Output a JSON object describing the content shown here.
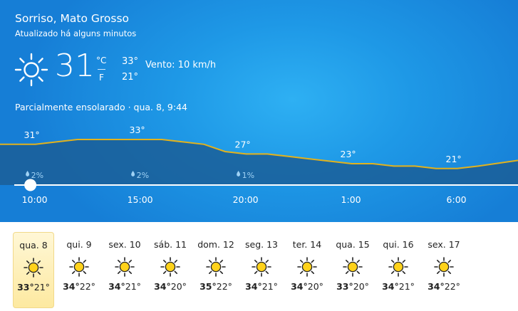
{
  "location": "Sorriso, Mato Grosso",
  "updated": "Atualizado há alguns minutos",
  "current": {
    "icon": "sun-icon",
    "temperature": "31",
    "unit_c": "°C",
    "unit_f": "F",
    "high": "33°",
    "low": "21°",
    "wind": "Vento: 10 km/h",
    "condition": "Parcialmente ensolarado  ·  qua. 8, 9:44"
  },
  "colors": {
    "card_gradient_center": "#2eb0f3",
    "card_gradient_edge": "#167ed6",
    "chart_fill": "#1b5d95",
    "chart_line": "#e2b21d",
    "selected_day": "#fde9a0"
  },
  "chart_data": {
    "type": "area",
    "x": [
      "9:00",
      "10:00",
      "11:00",
      "12:00",
      "13:00",
      "14:00",
      "15:00",
      "16:00",
      "17:00",
      "18:00",
      "19:00",
      "20:00",
      "21:00",
      "22:00",
      "23:00",
      "0:00",
      "1:00",
      "2:00",
      "3:00",
      "4:00",
      "5:00",
      "6:00",
      "7:00"
    ],
    "values": [
      31,
      31,
      32,
      33,
      33,
      33,
      33,
      33,
      32,
      31,
      28,
      27,
      27,
      26,
      25,
      24,
      23,
      23,
      22,
      22,
      21,
      21,
      22
    ],
    "xticks": [
      "10:00",
      "15:00",
      "20:00",
      "1:00",
      "6:00"
    ],
    "labels": [
      {
        "x": "10:00",
        "text": "31°"
      },
      {
        "x": "15:00",
        "text": "33°"
      },
      {
        "x": "20:00",
        "text": "27°"
      },
      {
        "x": "1:00",
        "text": "23°"
      },
      {
        "x": "6:00",
        "text": "21°"
      }
    ],
    "precipitation": [
      {
        "x": "10:00",
        "text": "2%"
      },
      {
        "x": "15:00",
        "text": "2%"
      },
      {
        "x": "20:00",
        "text": "1%"
      }
    ],
    "current_marker": "10:00",
    "grid": false
  },
  "forecast": [
    {
      "day": "qua. 8",
      "high": "33°",
      "low": "21°",
      "icon": "sun-icon",
      "selected": true
    },
    {
      "day": "qui. 9",
      "high": "34°",
      "low": "22°",
      "icon": "sun-icon"
    },
    {
      "day": "sex. 10",
      "high": "34°",
      "low": "21°",
      "icon": "sun-icon"
    },
    {
      "day": "sáb. 11",
      "high": "34°",
      "low": "20°",
      "icon": "sun-icon"
    },
    {
      "day": "dom. 12",
      "high": "35°",
      "low": "22°",
      "icon": "sun-icon"
    },
    {
      "day": "seg. 13",
      "high": "34°",
      "low": "21°",
      "icon": "sun-icon"
    },
    {
      "day": "ter. 14",
      "high": "34°",
      "low": "20°",
      "icon": "sun-icon"
    },
    {
      "day": "qua. 15",
      "high": "33°",
      "low": "20°",
      "icon": "sun-icon"
    },
    {
      "day": "qui. 16",
      "high": "34°",
      "low": "21°",
      "icon": "sun-icon"
    },
    {
      "day": "sex. 17",
      "high": "34°",
      "low": "22°",
      "icon": "sun-icon"
    }
  ]
}
